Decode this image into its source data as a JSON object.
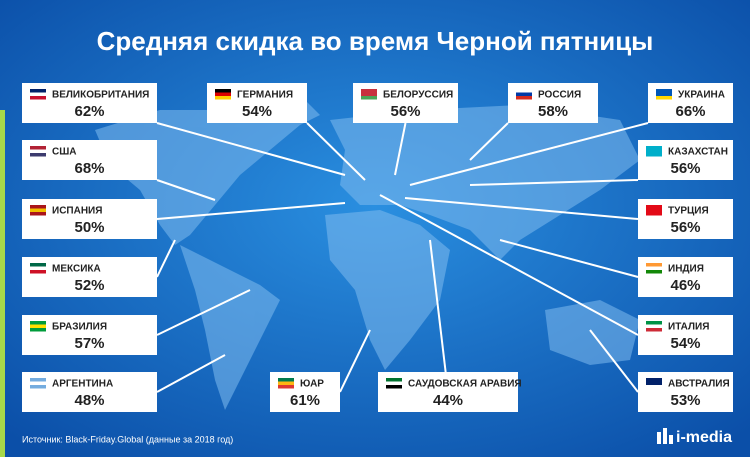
{
  "title": "Средняя скидка во время Черной пятницы",
  "callouts": [
    {
      "name": "ВЕЛИКОБРИТАНИЯ",
      "value": "62%"
    },
    {
      "name": "ГЕРМАНИЯ",
      "value": "54%"
    },
    {
      "name": "БЕЛОРУССИЯ",
      "value": "56%"
    },
    {
      "name": "РОССИЯ",
      "value": "58%"
    },
    {
      "name": "УКРАИНА",
      "value": "66%"
    },
    {
      "name": "США",
      "value": "68%"
    },
    {
      "name": "КАЗАХСТАН",
      "value": "56%"
    },
    {
      "name": "ИСПАНИЯ",
      "value": "50%"
    },
    {
      "name": "ТУРЦИЯ",
      "value": "56%"
    },
    {
      "name": "МЕКСИКА",
      "value": "52%"
    },
    {
      "name": "ИНДИЯ",
      "value": "46%"
    },
    {
      "name": "БРАЗИЛИЯ",
      "value": "57%"
    },
    {
      "name": "ИТАЛИЯ",
      "value": "54%"
    },
    {
      "name": "АРГЕНТИНА",
      "value": "48%"
    },
    {
      "name": "ЮАР",
      "value": "61%"
    },
    {
      "name": "САУДОВСКАЯ АРАВИЯ",
      "value": "44%"
    },
    {
      "name": "АВСТРАЛИЯ",
      "value": "53%"
    }
  ],
  "footer": {
    "source": "Источник: Black-Friday.Global (данные за 2018 год)",
    "logo": "i-media"
  }
}
